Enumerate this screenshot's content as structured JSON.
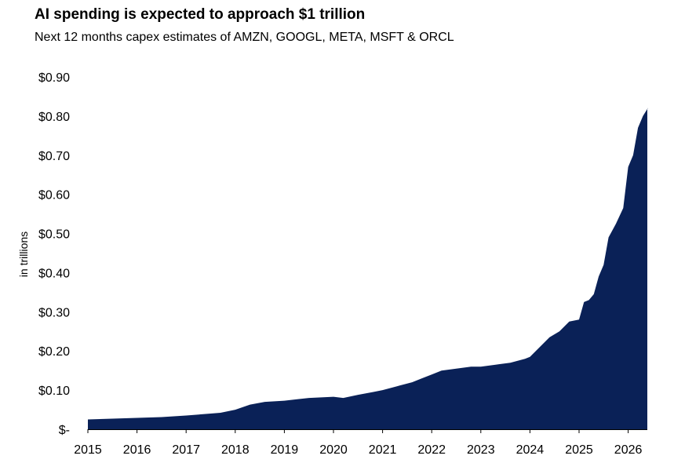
{
  "chart_data": {
    "type": "area",
    "title": "AI spending is expected to approach $1 trillion",
    "subtitle": "Next 12 months capex estimates of AMZN, GOOGL, META, MSFT & ORCL",
    "ylabel": "in trillions",
    "xlabel": "",
    "ylim": [
      0,
      0.9
    ],
    "xlim": [
      2015,
      2026.5
    ],
    "ytick_labels": [
      "$-",
      "$0.10",
      "$0.20",
      "$0.30",
      "$0.40",
      "$0.50",
      "$0.60",
      "$0.70",
      "$0.80",
      "$0.90"
    ],
    "xtick_labels": [
      "2015",
      "2016",
      "2017",
      "2018",
      "2019",
      "2020",
      "2021",
      "2022",
      "2023",
      "2024",
      "2025",
      "2026"
    ],
    "color": "#0a2157",
    "grid": false,
    "legend": "none",
    "series": [
      {
        "x": [
          2015.0,
          2015.5,
          2016.0,
          2016.5,
          2017.0,
          2017.5,
          2017.7,
          2018.0,
          2018.3,
          2018.6,
          2019.0,
          2019.5,
          2020.0,
          2020.2,
          2020.5,
          2020.8,
          2021.0,
          2021.3,
          2021.6,
          2021.8,
          2022.0,
          2022.2,
          2022.5,
          2022.8,
          2023.0,
          2023.3,
          2023.6,
          2023.9,
          2024.0,
          2024.2,
          2024.4,
          2024.6,
          2024.8,
          2025.0,
          2025.1,
          2025.2,
          2025.3,
          2025.4,
          2025.5,
          2025.6,
          2025.75,
          2025.9,
          2026.0,
          2026.1,
          2026.2,
          2026.3,
          2026.4
        ],
        "y": [
          0.025,
          0.027,
          0.029,
          0.031,
          0.035,
          0.04,
          0.042,
          0.05,
          0.063,
          0.07,
          0.073,
          0.08,
          0.083,
          0.08,
          0.088,
          0.095,
          0.1,
          0.11,
          0.12,
          0.13,
          0.14,
          0.15,
          0.155,
          0.16,
          0.16,
          0.165,
          0.17,
          0.18,
          0.185,
          0.21,
          0.235,
          0.25,
          0.275,
          0.28,
          0.325,
          0.33,
          0.345,
          0.39,
          0.42,
          0.49,
          0.525,
          0.565,
          0.67,
          0.7,
          0.77,
          0.8,
          0.82
        ]
      }
    ]
  }
}
